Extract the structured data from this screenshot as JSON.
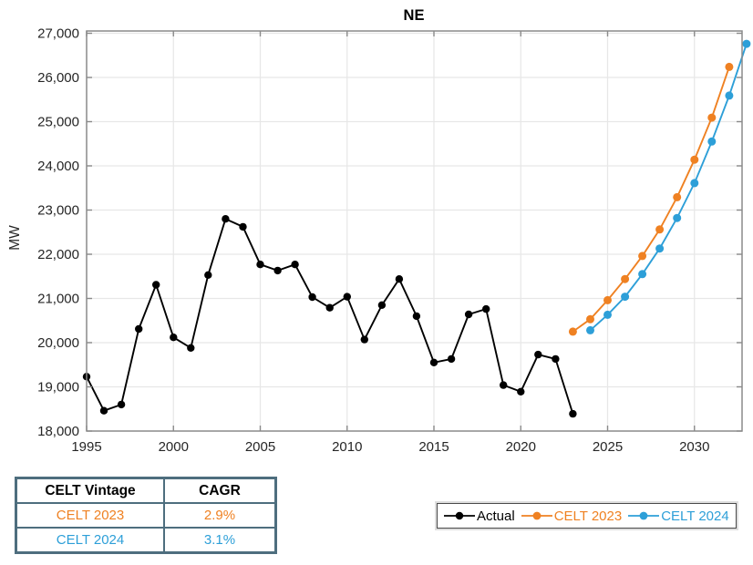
{
  "title": "NE",
  "axes": {
    "ylabel": "MW",
    "yticks": [
      {
        "value": 18000,
        "label": "18,000"
      },
      {
        "value": 19000,
        "label": "19,000"
      },
      {
        "value": 20000,
        "label": "20,000"
      },
      {
        "value": 21000,
        "label": "21,000"
      },
      {
        "value": 22000,
        "label": "22,000"
      },
      {
        "value": 23000,
        "label": "23,000"
      },
      {
        "value": 24000,
        "label": "24,000"
      },
      {
        "value": 25000,
        "label": "25,000"
      },
      {
        "value": 26000,
        "label": "26,000"
      },
      {
        "value": 27000,
        "label": "27,000"
      }
    ],
    "xticks": [
      {
        "value": 1995,
        "label": "1995"
      },
      {
        "value": 2000,
        "label": "2000"
      },
      {
        "value": 2005,
        "label": "2005"
      },
      {
        "value": 2010,
        "label": "2010"
      },
      {
        "value": 2015,
        "label": "2015"
      },
      {
        "value": 2020,
        "label": "2020"
      },
      {
        "value": 2025,
        "label": "2025"
      },
      {
        "value": 2030,
        "label": "2030"
      }
    ]
  },
  "chart_data": {
    "type": "line",
    "title": "NE",
    "xlabel": "",
    "ylabel": "MW",
    "xlim": [
      1995,
      2032.75
    ],
    "ylim": [
      18000,
      27050
    ],
    "grid": true,
    "legend_position": "below-plot-right",
    "series": [
      {
        "name": "Actual",
        "color": "#000000",
        "marker_radius": 4.2,
        "x": [
          1995,
          1996,
          1997,
          1998,
          1999,
          2000,
          2001,
          2002,
          2003,
          2004,
          2005,
          2006,
          2007,
          2008,
          2009,
          2010,
          2011,
          2012,
          2013,
          2014,
          2015,
          2016,
          2017,
          2018,
          2019,
          2020,
          2021,
          2022,
          2023
        ],
        "values": [
          19230,
          18460,
          18600,
          20310,
          21310,
          20120,
          19880,
          21530,
          22800,
          22620,
          21770,
          21630,
          21770,
          21030,
          20790,
          21040,
          20070,
          20850,
          21440,
          20600,
          19550,
          19630,
          20640,
          20760,
          19040,
          18890,
          19730,
          19630,
          18390
        ]
      },
      {
        "name": "CELT 2023",
        "color": "#EF8122",
        "marker_radius": 4.5,
        "x": [
          2023,
          2024,
          2025,
          2026,
          2027,
          2028,
          2029,
          2030,
          2031,
          2032
        ],
        "values": [
          20250,
          20530,
          20960,
          21440,
          21960,
          22560,
          23290,
          24140,
          25090,
          26240
        ]
      },
      {
        "name": "CELT 2024",
        "color": "#2D9FD8",
        "marker_radius": 4.5,
        "x": [
          2024,
          2025,
          2026,
          2027,
          2028,
          2029,
          2030,
          2031,
          2032,
          2033
        ],
        "values": [
          20280,
          20630,
          21040,
          21550,
          22130,
          22820,
          23610,
          24550,
          25590,
          26760
        ]
      }
    ]
  },
  "legend": {
    "items": [
      {
        "label": "Actual",
        "color": "#000000"
      },
      {
        "label": "CELT 2023",
        "color": "#EF8122"
      },
      {
        "label": "CELT 2024",
        "color": "#2D9FD8"
      }
    ]
  },
  "table": {
    "headers": [
      "CELT Vintage",
      "CAGR"
    ],
    "rows": [
      {
        "vintage": "CELT 2023",
        "cagr": "2.9%",
        "color": "#EF8122"
      },
      {
        "vintage": "CELT 2024",
        "cagr": "3.1%",
        "color": "#2D9FD8"
      }
    ],
    "border_color": "#4E6E7E"
  },
  "colors": {
    "grid": "#E7E7E7",
    "axis": "#8A8A8A",
    "tick_label": "#262626",
    "background": "#FFFFFF"
  }
}
